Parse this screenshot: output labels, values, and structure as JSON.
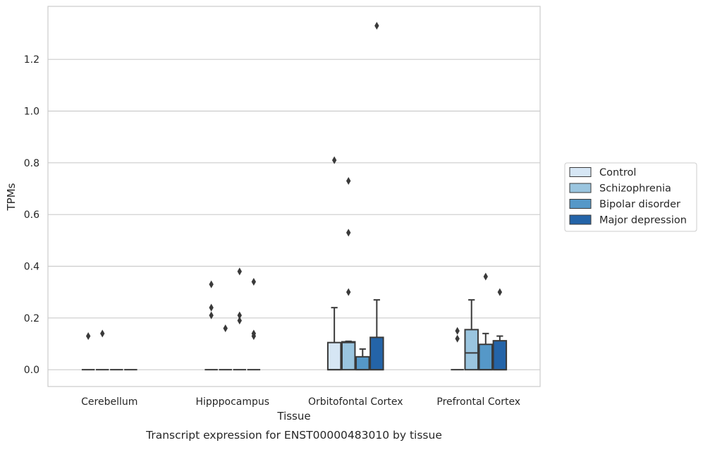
{
  "chart_data": {
    "type": "boxplot",
    "title": "",
    "caption": "Transcript expression for ENST00000483010 by tissue",
    "xlabel": "Tissue",
    "ylabel": "TPMs",
    "ylim": [
      -0.065,
      1.405
    ],
    "yticks": [
      0.0,
      0.2,
      0.4,
      0.6,
      0.8,
      1.0,
      1.2
    ],
    "ytick_labels": [
      "0.0",
      "0.2",
      "0.4",
      "0.6",
      "0.8",
      "1.0",
      "1.2"
    ],
    "grid": "horizontal",
    "legend_position": "right",
    "categories": [
      "Cerebellum",
      "Hipppocampus",
      "Orbitofontal Cortex",
      "Prefrontal Cortex"
    ],
    "series": [
      {
        "name": "Control",
        "color": "#d6e6f4",
        "boxes": [
          {
            "q1": 0.0,
            "median": 0.0,
            "q3": 0.0,
            "whislo": 0.0,
            "whishi": 0.0,
            "fliers": [
              0.13
            ]
          },
          {
            "q1": 0.0,
            "median": 0.0,
            "q3": 0.0,
            "whislo": 0.0,
            "whishi": 0.0,
            "fliers": [
              0.33,
              0.24,
              0.21
            ]
          },
          {
            "q1": 0.0,
            "median": 0.0,
            "q3": 0.105,
            "whislo": 0.0,
            "whishi": 0.24,
            "fliers": [
              0.81
            ]
          },
          {
            "q1": 0.0,
            "median": 0.0,
            "q3": 0.0,
            "whislo": 0.0,
            "whishi": 0.0,
            "fliers": [
              0.15,
              0.12
            ]
          }
        ]
      },
      {
        "name": "Schizophrenia",
        "color": "#9ac5df",
        "boxes": [
          {
            "q1": 0.0,
            "median": 0.0,
            "q3": 0.0,
            "whislo": 0.0,
            "whishi": 0.0,
            "fliers": [
              0.14
            ]
          },
          {
            "q1": 0.0,
            "median": 0.0,
            "q3": 0.0,
            "whislo": 0.0,
            "whishi": 0.0,
            "fliers": [
              0.16
            ]
          },
          {
            "q1": 0.0,
            "median": 0.105,
            "q3": 0.108,
            "whislo": 0.0,
            "whishi": 0.11,
            "fliers": [
              0.73,
              0.53,
              0.3
            ]
          },
          {
            "q1": 0.0,
            "median": 0.065,
            "q3": 0.155,
            "whislo": 0.0,
            "whishi": 0.27,
            "fliers": []
          }
        ]
      },
      {
        "name": "Bipolar disorder",
        "color": "#5598c8",
        "boxes": [
          {
            "q1": 0.0,
            "median": 0.0,
            "q3": 0.0,
            "whislo": 0.0,
            "whishi": 0.0,
            "fliers": []
          },
          {
            "q1": 0.0,
            "median": 0.0,
            "q3": 0.0,
            "whislo": 0.0,
            "whishi": 0.0,
            "fliers": [
              0.38,
              0.21,
              0.19
            ]
          },
          {
            "q1": 0.0,
            "median": 0.0,
            "q3": 0.05,
            "whislo": 0.0,
            "whishi": 0.08,
            "fliers": []
          },
          {
            "q1": 0.0,
            "median": 0.0,
            "q3": 0.098,
            "whislo": 0.0,
            "whishi": 0.14,
            "fliers": [
              0.36
            ]
          }
        ]
      },
      {
        "name": "Major depression",
        "color": "#2464a8",
        "boxes": [
          {
            "q1": 0.0,
            "median": 0.0,
            "q3": 0.0,
            "whislo": 0.0,
            "whishi": 0.0,
            "fliers": []
          },
          {
            "q1": 0.0,
            "median": 0.0,
            "q3": 0.0,
            "whislo": 0.0,
            "whishi": 0.0,
            "fliers": [
              0.34,
              0.14,
              0.13
            ]
          },
          {
            "q1": 0.0,
            "median": 0.0,
            "q3": 0.125,
            "whislo": 0.0,
            "whishi": 0.27,
            "fliers": [
              1.33
            ]
          },
          {
            "q1": 0.0,
            "median": 0.0,
            "q3": 0.112,
            "whislo": 0.0,
            "whishi": 0.13,
            "fliers": [
              0.3
            ]
          }
        ]
      }
    ]
  }
}
